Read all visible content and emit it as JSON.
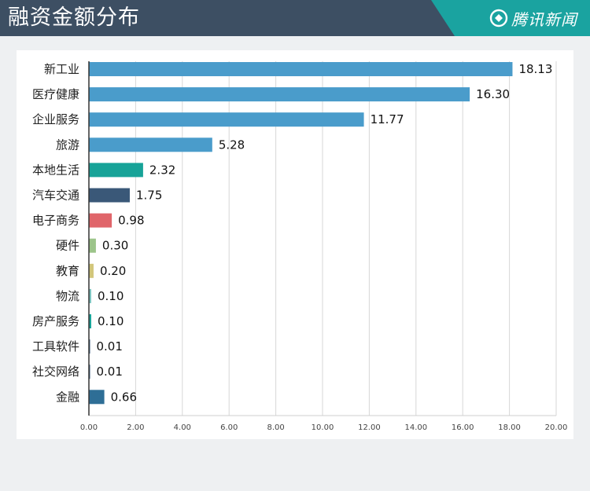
{
  "header": {
    "title": "融资金额分布",
    "brand": "腾讯新闻",
    "colors": {
      "bar": "#3d4f63",
      "accent": "#1aa3a0"
    }
  },
  "chart_data": {
    "type": "bar",
    "orientation": "horizontal",
    "title": "融资金额分布",
    "categories": [
      "新工业",
      "医疗健康",
      "企业服务",
      "旅游",
      "本地生活",
      "汽车交通",
      "电子商务",
      "硬件",
      "教育",
      "物流",
      "房产服务",
      "工具软件",
      "社交网络",
      "金融"
    ],
    "values": [
      18.13,
      16.3,
      11.77,
      5.28,
      2.32,
      1.75,
      0.98,
      0.3,
      0.2,
      0.1,
      0.1,
      0.01,
      0.01,
      0.66
    ],
    "value_labels": [
      "18.13",
      "16.30",
      "11.77",
      "5.28",
      "2.32",
      "1.75",
      "0.98",
      "0.30",
      "0.20",
      "0.10",
      "0.10",
      "0.01",
      "0.01",
      "0.66"
    ],
    "colors": [
      "#4a9ccb",
      "#4a9ccb",
      "#4a9ccb",
      "#4a9ccb",
      "#17a398",
      "#3a5878",
      "#e0656a",
      "#9cc48a",
      "#d2c67a",
      "#7cc4c0",
      "#17a398",
      "#3a5878",
      "#3a5878",
      "#2e6e96"
    ],
    "xlim": [
      0,
      20
    ],
    "xticks": [
      0,
      2,
      4,
      6,
      8,
      10,
      12,
      14,
      16,
      18,
      20
    ],
    "xtick_labels": [
      "0.00",
      "2.00",
      "4.00",
      "6.00",
      "8.00",
      "10.00",
      "12.00",
      "14.00",
      "16.00",
      "18.00",
      "20.00"
    ],
    "grid": true,
    "xlabel": "",
    "ylabel": ""
  }
}
